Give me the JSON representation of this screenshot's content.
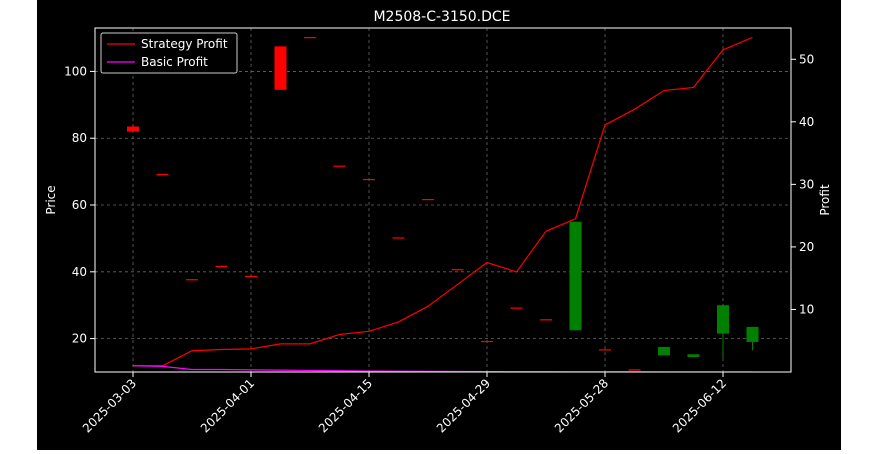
{
  "chart_data": {
    "type": "candlestick",
    "title": "M2508-C-3150.DCE",
    "xlabel": "",
    "ylabel_left": "Price",
    "ylabel_right": "Profit",
    "ylim_left": [
      10,
      113
    ],
    "ylim_right": [
      0,
      55
    ],
    "grid": true,
    "legend_placement": "top-left",
    "x_tick_labels": [
      "2025-03-03",
      "2025-04-01",
      "2025-04-15",
      "2025-04-29",
      "2025-05-28",
      "2025-06-12"
    ],
    "x_tick_indices": [
      0,
      4,
      8,
      12,
      16,
      20
    ],
    "y_left_ticks": [
      20,
      40,
      60,
      80,
      100
    ],
    "y_right_ticks": [
      10,
      20,
      30,
      40,
      50
    ],
    "candles": [
      {
        "open": 82,
        "high": 83.5,
        "low": 82,
        "close": 83.5
      },
      {
        "open": 69,
        "high": 69.3,
        "low": 69,
        "close": 69.3
      },
      {
        "open": 37.5,
        "high": 37.8,
        "low": 37.5,
        "close": 37.8
      },
      {
        "open": 41.5,
        "high": 41.8,
        "low": 41.5,
        "close": 41.8
      },
      {
        "open": 38.5,
        "high": 38.8,
        "low": 38.5,
        "close": 38.8
      },
      {
        "open": 94.5,
        "high": 107.5,
        "low": 94.5,
        "close": 107.5
      },
      {
        "open": 110,
        "high": 110.3,
        "low": 110,
        "close": 110.3
      },
      {
        "open": 71.5,
        "high": 71.8,
        "low": 71.5,
        "close": 71.8
      },
      {
        "open": 67.5,
        "high": 67.8,
        "low": 67.5,
        "close": 67.8
      },
      {
        "open": 50,
        "high": 50.3,
        "low": 50,
        "close": 50.3
      },
      {
        "open": 61.5,
        "high": 61.8,
        "low": 61.5,
        "close": 61.8
      },
      {
        "open": 40.5,
        "high": 40.8,
        "low": 40.5,
        "close": 40.8
      },
      {
        "open": 19,
        "high": 19.3,
        "low": 19,
        "close": 19.3
      },
      {
        "open": 29,
        "high": 29.3,
        "low": 29,
        "close": 29.3
      },
      {
        "open": 25.5,
        "high": 25.8,
        "low": 25.5,
        "close": 25.8
      },
      {
        "open": 55,
        "high": 55,
        "low": 22.5,
        "close": 22.5
      },
      {
        "open": 16.5,
        "high": 16.8,
        "low": 16.5,
        "close": 16.8
      },
      {
        "open": 10.5,
        "high": 10.8,
        "low": 10.5,
        "close": 10.8
      },
      {
        "open": 17.5,
        "high": 17.5,
        "low": 15,
        "close": 15
      },
      {
        "open": 15.3,
        "high": 15.3,
        "low": 14.5,
        "close": 14.5
      },
      {
        "open": 30,
        "high": 30,
        "low": 14,
        "close": 21.5
      },
      {
        "open": 23.5,
        "high": 23.5,
        "low": 16.5,
        "close": 19
      }
    ],
    "series": [
      {
        "name": "Strategy Profit",
        "color": "#ff0000",
        "values": [
          1,
          1,
          3.4,
          3.6,
          3.7,
          4.5,
          4.5,
          6,
          6.5,
          8,
          10.5,
          14,
          17.5,
          16,
          22.5,
          24.5,
          39.5,
          42,
          45,
          45.5,
          51.5,
          53.5
        ]
      },
      {
        "name": "Basic Profit",
        "color": "#ff00ff",
        "values": [
          1,
          0.9,
          0.4,
          0.4,
          0.35,
          0.3,
          0.25,
          0.2,
          0.15,
          0.12,
          0.1,
          0.08,
          0.06,
          0.05,
          0.04,
          0.03,
          0.02,
          0.02,
          0.01,
          0.01,
          0.01,
          0.01
        ]
      }
    ],
    "colors": {
      "up": "#ff0000",
      "down": "#008000",
      "background": "#000000",
      "axis": "#ffffff",
      "grid": "#666666"
    }
  }
}
